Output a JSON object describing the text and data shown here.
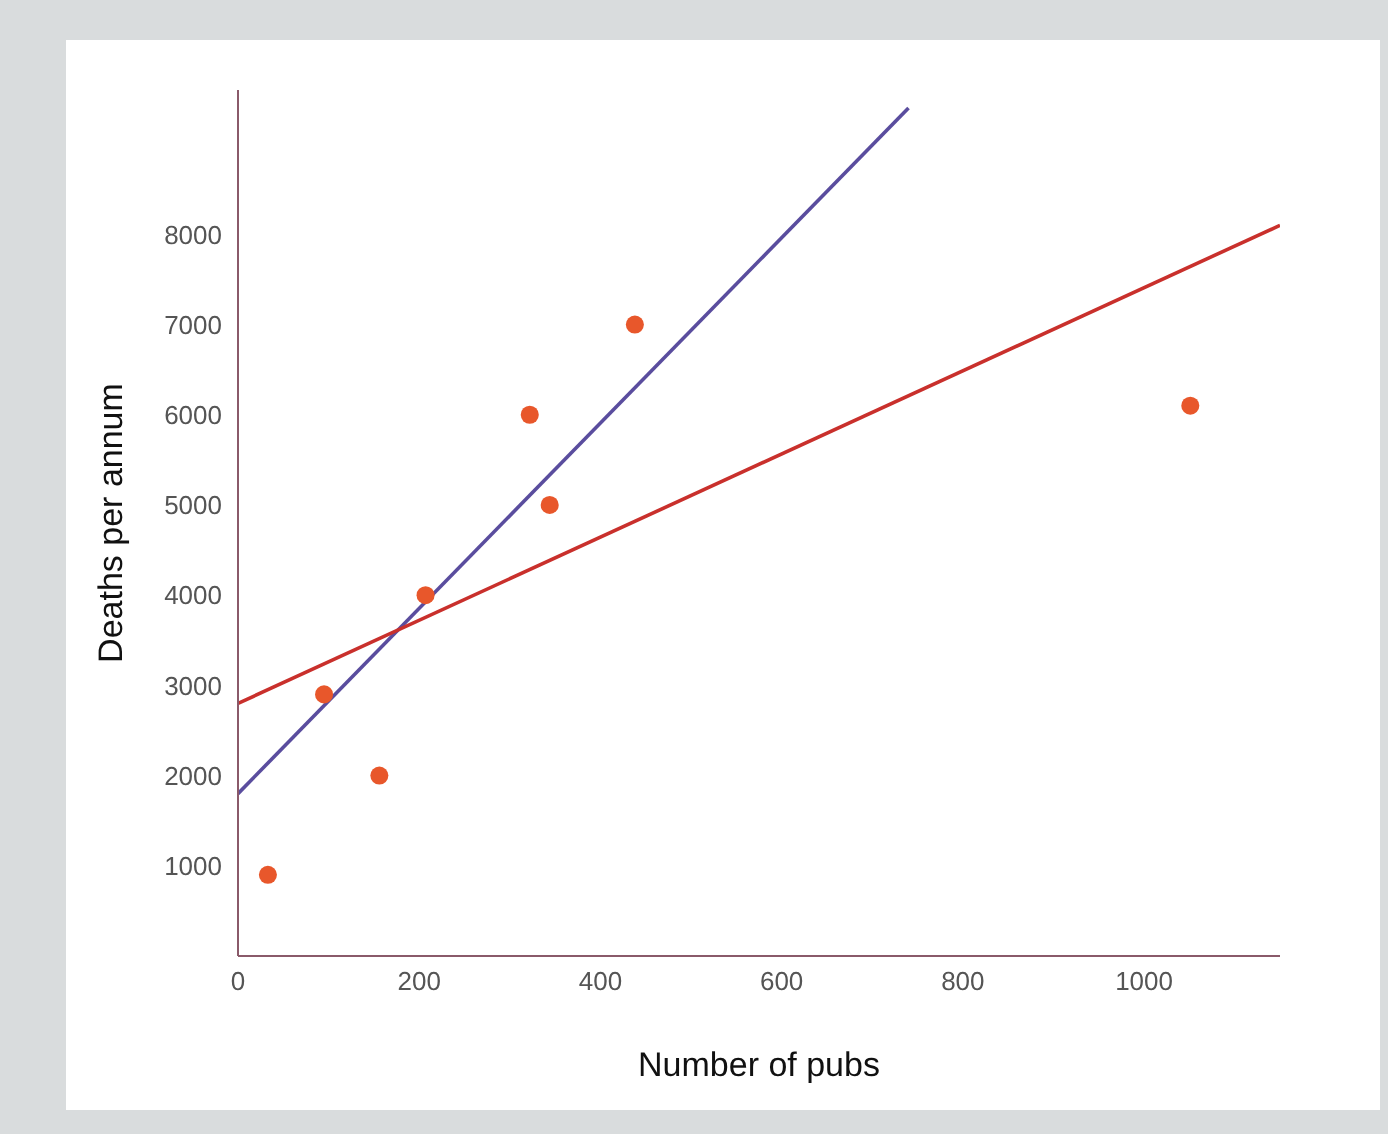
{
  "chart_data": {
    "type": "scatter",
    "xlabel": "Number of pubs",
    "ylabel": "Deaths per annum",
    "xlim": [
      0,
      1150
    ],
    "xticks": [
      0,
      200,
      400,
      600,
      800,
      1000
    ],
    "ylim": [
      0,
      9600
    ],
    "yticks": [
      1000,
      2000,
      3000,
      4000,
      5000,
      6000,
      7000,
      8000
    ],
    "series": [
      {
        "color": "#e8572b",
        "marker": "circle",
        "x": [
          33,
          95,
          156,
          207,
          322,
          344,
          438,
          1051
        ],
        "values": [
          900,
          2900,
          2000,
          4000,
          6000,
          5000,
          7000,
          6100
        ]
      },
      {
        "type": "line",
        "color": "#5a4d9e",
        "marker": "none",
        "line_style": "solid",
        "x": [
          0,
          740
        ],
        "values": [
          1800,
          9400
        ]
      },
      {
        "type": "line",
        "color": "#c9302c",
        "marker": "none",
        "line_style": "solid",
        "x": [
          0,
          1150
        ],
        "values": [
          2800,
          8100
        ]
      }
    ]
  }
}
